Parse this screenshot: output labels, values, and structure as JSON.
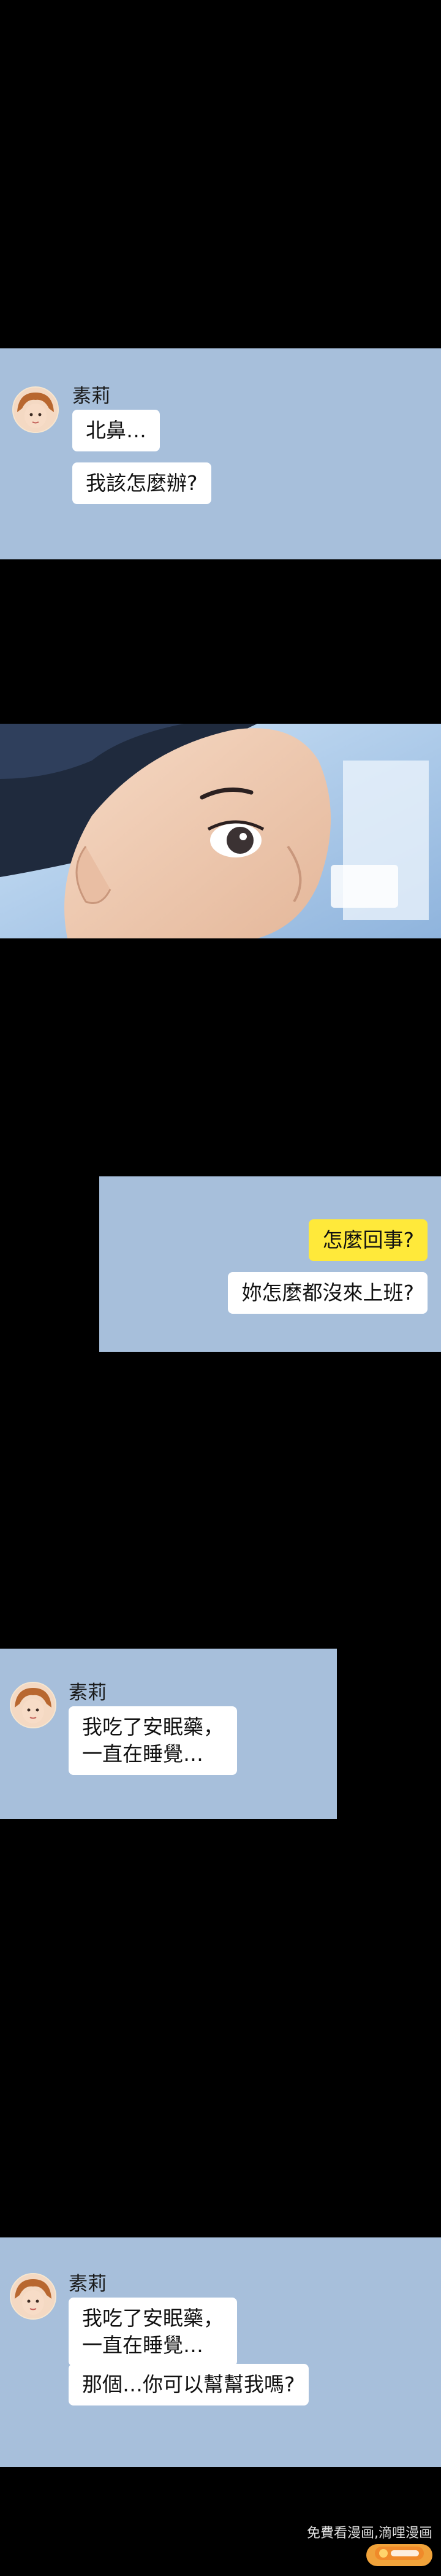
{
  "chat1": {
    "name": "素莉",
    "messages": [
      "北鼻…",
      "我該怎麼辦?"
    ]
  },
  "chat2": {
    "messages": [
      "怎麼回事?",
      "妳怎麼都沒來上班?"
    ]
  },
  "chat3": {
    "name": "素莉",
    "message": "我吃了安眠藥，\n一直在睡覺…"
  },
  "chat4": {
    "name": "素莉",
    "message1": "我吃了安眠藥，\n一直在睡覺…",
    "message2": "那個…你可以幫幫我嗎?"
  },
  "watermark": {
    "text": "免費看漫画,滴哩漫画"
  },
  "colors": {
    "background": "#000000",
    "panel": "#a7bfdb",
    "bubble": "#ffffff",
    "bubble_highlight": "#ffe93a"
  }
}
